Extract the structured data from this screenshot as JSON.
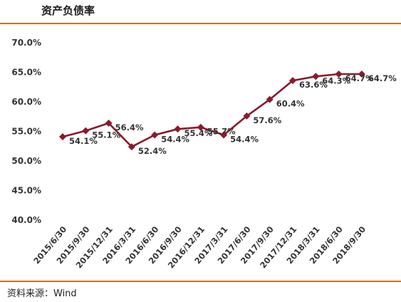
{
  "title": "资产负债率",
  "source": "资料来源：Wind",
  "colors": {
    "accent_rule": "#e06c1a",
    "series": "#8b1a2b"
  },
  "chart_data": {
    "type": "line",
    "title": "资产负债率",
    "xlabel": "",
    "ylabel": "",
    "ylim": [
      40,
      70
    ],
    "y_ticks": [
      "40.0%",
      "45.0%",
      "50.0%",
      "55.0%",
      "60.0%",
      "65.0%",
      "70.0%"
    ],
    "grid": false,
    "categories": [
      "2015/6/30",
      "2015/9/30",
      "2015/12/31",
      "2016/3/31",
      "2016/6/30",
      "2016/9/30",
      "2016/12/31",
      "2017/3/31",
      "2017/6/30",
      "2017/9/30",
      "2017/12/31",
      "2018/3/31",
      "2018/6/30",
      "2018/9/30"
    ],
    "series": [
      {
        "values": [
          54.1,
          55.1,
          56.4,
          52.4,
          54.4,
          55.4,
          55.7,
          54.4,
          57.6,
          60.4,
          63.6,
          64.3,
          64.7,
          64.7
        ],
        "labels": [
          "54.1%",
          "55.1%",
          "56.4%",
          "52.4%",
          "54.4%",
          "55.4%",
          "55.7%",
          "54.4%",
          "57.6%",
          "60.4%",
          "63.6%",
          "64.3%",
          "64.7%",
          "64.7%"
        ]
      }
    ]
  }
}
